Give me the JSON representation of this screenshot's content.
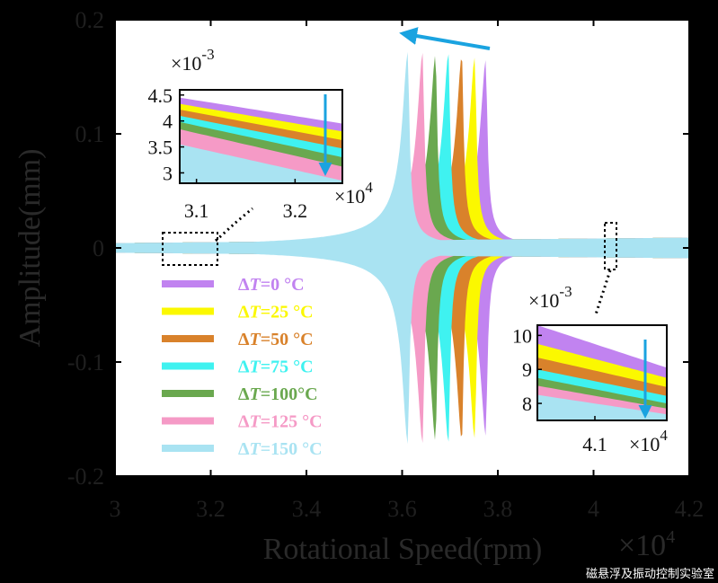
{
  "chart_data": {
    "type": "line",
    "xlabel": "Rotational Speed(rpm)",
    "ylabel": "Amplitude(mm)",
    "x_multiplier": "×10",
    "x_multiplier_exp": "4",
    "xlim": [
      3,
      4.2
    ],
    "ylim": [
      -0.2,
      0.2
    ],
    "xticks": [
      "3",
      "3.2",
      "3.4",
      "3.6",
      "3.8",
      "4",
      "4.2"
    ],
    "yticks": [
      "0.2",
      "0.1",
      "0",
      "-0.1",
      "-0.2"
    ],
    "ytick_values": [
      0.2,
      0.1,
      0,
      -0.1,
      -0.2
    ],
    "xtick_values": [
      3,
      3.2,
      3.4,
      3.6,
      3.8,
      4,
      4.2
    ],
    "series": [
      {
        "name": "ΔT=0 °C",
        "name_prefix": "Δ",
        "name_italic": "T",
        "name_suffix": "=0 °C",
        "color": "#c183f0",
        "peak_speed": 3.775,
        "peak_amplitude": 0.165
      },
      {
        "name": "ΔT=25 °C",
        "name_prefix": "Δ",
        "name_italic": "T",
        "name_suffix": "=25 °C",
        "color": "#fbf800",
        "peak_speed": 3.752,
        "peak_amplitude": 0.167
      },
      {
        "name": "ΔT=50 °C",
        "name_prefix": "Δ",
        "name_italic": "T",
        "name_suffix": "=50 °C",
        "color": "#d9822b",
        "peak_speed": 3.725,
        "peak_amplitude": 0.169
      },
      {
        "name": "ΔT=75 °C",
        "name_prefix": "Δ",
        "name_italic": "T",
        "name_suffix": "=75 °C",
        "color": "#3ff2f0",
        "peak_speed": 3.697,
        "peak_amplitude": 0.17
      },
      {
        "name": "ΔT=100°C",
        "name_prefix": "Δ",
        "name_italic": "T",
        "name_suffix": "=100°C",
        "color": "#6aa84f",
        "peak_speed": 3.67,
        "peak_amplitude": 0.17
      },
      {
        "name": "ΔT=125 °C",
        "name_prefix": "Δ",
        "name_italic": "T",
        "name_suffix": "=125 °C",
        "color": "#f59ac6",
        "peak_speed": 3.643,
        "peak_amplitude": 0.171
      },
      {
        "name": "ΔT=150 °C",
        "name_prefix": "Δ",
        "name_italic": "T",
        "name_suffix": "=150 °C",
        "color": "#a9e3f2",
        "peak_speed": 3.612,
        "peak_amplitude": 0.172
      }
    ],
    "insets": [
      {
        "id": "inset-left",
        "multiplier": "×10",
        "multiplier_exp": "-3",
        "xmult": "×10",
        "xmult_exp": "4",
        "yticks": [
          "4.5",
          "4",
          "3.5",
          "3"
        ],
        "ytick_values": [
          4.5,
          4.0,
          3.5,
          3.0
        ],
        "xticks": [
          "3.1",
          "3.2"
        ],
        "xtick_values": [
          3.1,
          3.2
        ],
        "xlim": [
          3.083,
          3.248
        ],
        "ylim": [
          2.8,
          4.6
        ]
      },
      {
        "id": "inset-right",
        "multiplier": "×10",
        "multiplier_exp": "-3",
        "xmult": "×10",
        "xmult_exp": "4",
        "yticks": [
          "10",
          "9",
          "8"
        ],
        "ytick_values": [
          10,
          9,
          8
        ],
        "xticks": [
          "4.1"
        ],
        "xtick_values": [
          4.1
        ],
        "xlim": [
          4.04,
          4.175
        ],
        "ylim": [
          7.5,
          10.3
        ]
      }
    ],
    "arrow_color": "#1aa3e0",
    "legend_position": "lower-left"
  },
  "watermark": "磁悬浮及振动控制实验室"
}
